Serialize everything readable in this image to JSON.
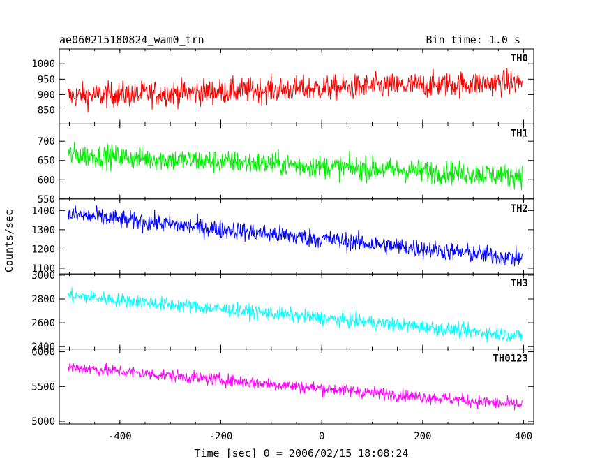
{
  "chart_data": {
    "type": "line",
    "title": "ae060215180824_wam0_trn",
    "bin_time_label": "Bin time: 1.0 s",
    "xlabel": "Time [sec] 0 = 2006/02/15 18:08:24",
    "ylabel": "Counts/sec",
    "xlim": [
      -520,
      420
    ],
    "xticks": [
      -400,
      -200,
      0,
      200,
      400
    ],
    "x_start": -503,
    "x_end": 397,
    "grid": false,
    "panels": [
      {
        "name": "TH0",
        "color": "#ff0000",
        "ylim": [
          805,
          1048
        ],
        "yticks": [
          850,
          900,
          950,
          1000
        ],
        "trend_start": 895,
        "trend_end": 940,
        "noise": 38
      },
      {
        "name": "TH1",
        "color": "#00ee00",
        "ylim": [
          550,
          745
        ],
        "yticks": [
          550,
          600,
          650,
          700
        ],
        "trend_start": 665,
        "trend_end": 610,
        "noise": 28
      },
      {
        "name": "TH2",
        "color": "#0000ff",
        "ylim": [
          1070,
          1460
        ],
        "yticks": [
          1100,
          1200,
          1300,
          1400
        ],
        "trend_start": 1380,
        "trend_end": 1150,
        "noise": 45
      },
      {
        "name": "TH3",
        "color": "#00ffff",
        "ylim": [
          2380,
          3010
        ],
        "yticks": [
          2400,
          2600,
          2800,
          3000
        ],
        "trend_start": 2830,
        "trend_end": 2490,
        "noise": 55
      },
      {
        "name": "TH0123",
        "color": "#ff00ff",
        "ylim": [
          4960,
          6040
        ],
        "yticks": [
          5000,
          5500,
          6000
        ],
        "trend_start": 5780,
        "trend_end": 5230,
        "noise": 85
      }
    ]
  }
}
